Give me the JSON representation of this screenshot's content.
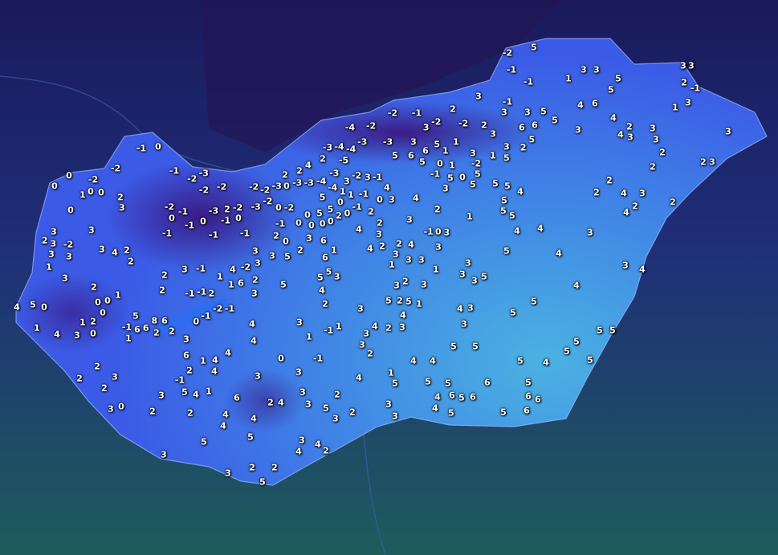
{
  "map": {
    "colors": {
      "background_north": "#1b1c62",
      "background_south": "#1f5d5f",
      "country_low": "#3f63e6",
      "country_warm": "#45a6e0",
      "country_cold": "#3a1e8a",
      "border": "#8fb0ff"
    },
    "layer": "temperature"
  },
  "stations": [
    -2,
    5,
    -1,
    -1,
    1,
    3,
    3,
    5,
    5,
    3,
    3,
    2,
    -1,
    3,
    1,
    3,
    2,
    3,
    4,
    6,
    4,
    3,
    2,
    4,
    3,
    3,
    3,
    2,
    2,
    2,
    2,
    2,
    4,
    3,
    2,
    4,
    3,
    3,
    4,
    4,
    4,
    4,
    4,
    5,
    5,
    5,
    5,
    5,
    5,
    5,
    4,
    5,
    5,
    5,
    6,
    6,
    6,
    5,
    6,
    6,
    5,
    6,
    4,
    4,
    5,
    5,
    5,
    4,
    4,
    5,
    5,
    3,
    4,
    3,
    3,
    3,
    3,
    5,
    5,
    4,
    5,
    5,
    5,
    5,
    1,
    2,
    -1,
    0,
    3,
    3,
    1,
    3,
    3,
    1,
    3,
    2,
    3,
    2,
    3,
    4,
    2,
    4,
    4,
    2,
    3,
    3,
    4,
    3,
    0,
    2,
    4,
    -1,
    3,
    -2,
    3,
    0,
    5,
    0,
    2,
    0,
    -1,
    -1,
    1,
    1,
    5,
    5,
    0,
    0,
    0,
    0,
    -1,
    2,
    0,
    5,
    3,
    3,
    6,
    6,
    1,
    5,
    3,
    5,
    4,
    2,
    5,
    2,
    3,
    3,
    2,
    3,
    -2,
    4,
    1,
    1,
    6,
    4,
    4,
    3,
    1,
    -1,
    1,
    -1,
    0,
    3,
    3,
    6,
    2,
    4,
    3,
    3,
    5,
    2,
    3,
    2,
    3,
    3,
    1,
    5,
    4,
    2,
    3,
    3,
    4,
    2,
    3,
    4,
    5,
    2,
    5,
    1,
    3,
    4,
    4,
    4,
    5,
    5,
    3,
    3,
    2,
    2,
    5,
    3,
    4,
    4,
    2,
    2,
    2,
    3,
    0,
    2,
    2,
    3,
    2,
    3,
    5,
    4,
    1,
    -1,
    2,
    6,
    1,
    4,
    4,
    4,
    3,
    2,
    2,
    6,
    8,
    6,
    6,
    -1,
    1,
    5,
    0,
    -1,
    -2,
    -1,
    -1,
    -1,
    2,
    -1,
    3,
    2,
    2,
    1,
    0,
    0,
    0,
    2,
    1,
    2,
    3,
    0,
    4,
    1,
    4,
    5,
    0,
    3,
    1,
    3,
    3,
    -2,
    3,
    2,
    3,
    3,
    3,
    4,
    2,
    2,
    0,
    2,
    3,
    1,
    0,
    0,
    0,
    0,
    -2,
    -2,
    -1,
    0,
    -1,
    -2,
    -3,
    -2,
    -2,
    -2,
    -1,
    0,
    -1,
    -1,
    0,
    -3,
    2,
    -2,
    0,
    -1,
    -1,
    -1,
    -3,
    -2,
    0,
    -2,
    -2,
    -2,
    -3,
    0,
    -3,
    -3,
    2,
    2,
    4,
    2,
    -3,
    -4,
    -4,
    -3,
    -4,
    -4,
    -5,
    -4,
    -3,
    -2,
    -3,
    -2,
    -1,
    2,
    3,
    -1,
    2,
    -2,
    -2,
    3,
    3,
    5,
    6,
    6,
    5,
    1,
    1,
    3,
    1,
    5,
    3,
    2,
    3,
    3,
    3,
    5,
    6,
    6,
    5,
    5,
    5,
    5,
    0,
    5,
    3,
    -1,
    0,
    1,
    -2,
    5
  ]
}
